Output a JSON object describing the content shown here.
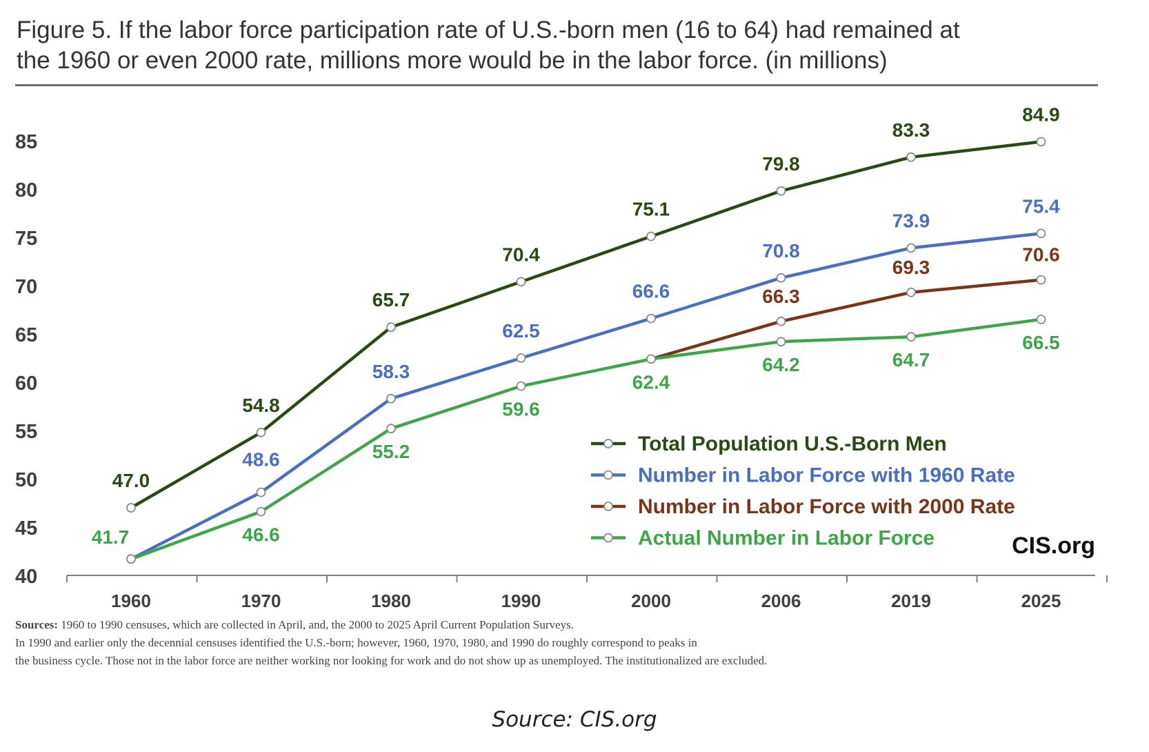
{
  "chart_data": {
    "type": "line",
    "title": "Figure 5. If the labor force participation rate of U.S.-born men (16 to 64) had remained at the 1960 or even 2000 rate, millions more would be in the labor force. (in millions)",
    "title_lines": [
      "Figure 5. If the labor force participation rate of U.S.-born men (16 to 64) had remained at",
      "the 1960 or even 2000 rate, millions more would be in the labor force. (in millions)"
    ],
    "categories": [
      "1960",
      "1970",
      "1980",
      "1990",
      "2000",
      "2006",
      "2019",
      "2025"
    ],
    "ylim": [
      40,
      85
    ],
    "yticks": [
      40,
      45,
      50,
      55,
      60,
      65,
      70,
      75,
      80,
      85
    ],
    "grid": false,
    "legend_position": "bottom-right",
    "series": [
      {
        "name": "Total Population U.S.-Born Men",
        "color": "#2a4a14",
        "values": [
          47.0,
          54.8,
          65.7,
          70.4,
          75.1,
          79.8,
          83.3,
          84.9
        ],
        "labels": [
          "47.0",
          "54.8",
          "65.7",
          "70.4",
          "75.1",
          "79.8",
          "83.3",
          "84.9"
        ]
      },
      {
        "name": "Number in Labor Force with 1960 Rate",
        "color": "#4a6fc0",
        "values": [
          41.7,
          48.6,
          58.3,
          62.5,
          66.6,
          70.8,
          73.9,
          75.4
        ],
        "labels": [
          "",
          "48.6",
          "58.3",
          "62.5",
          "66.6",
          "70.8",
          "73.9",
          "75.4"
        ]
      },
      {
        "name": "Number in Labor Force with 2000 Rate",
        "color": "#7a3519",
        "values": [
          null,
          null,
          null,
          null,
          62.4,
          66.3,
          69.3,
          70.6
        ],
        "labels": [
          "",
          "",
          "",
          "",
          "",
          "66.3",
          "69.3",
          "70.6"
        ]
      },
      {
        "name": "Actual Number in Labor Force",
        "color": "#3fa54a",
        "values": [
          41.7,
          46.6,
          55.2,
          59.6,
          62.4,
          64.2,
          64.7,
          66.5
        ],
        "labels": [
          "41.7",
          "46.6",
          "55.2",
          "59.6",
          "62.4",
          "64.2",
          "64.7",
          "66.5"
        ]
      }
    ],
    "watermark": "CIS.org"
  },
  "sources": {
    "head": "Sources:",
    "line1": "1960 to 1990 censuses, which are collected in April, and, the 2000 to 2025 April Current Population Surveys.",
    "line2": "In 1990 and earlier only the decennial censuses identified the U.S.-born; however, 1960, 1970, 1980, and 1990 do roughly correspond to peaks in",
    "line3": "the business cycle. Those not in the labor force are neither working nor looking for work and do not show up as unemployed. The institutionalized are excluded."
  },
  "caption": "Source: CIS.org"
}
